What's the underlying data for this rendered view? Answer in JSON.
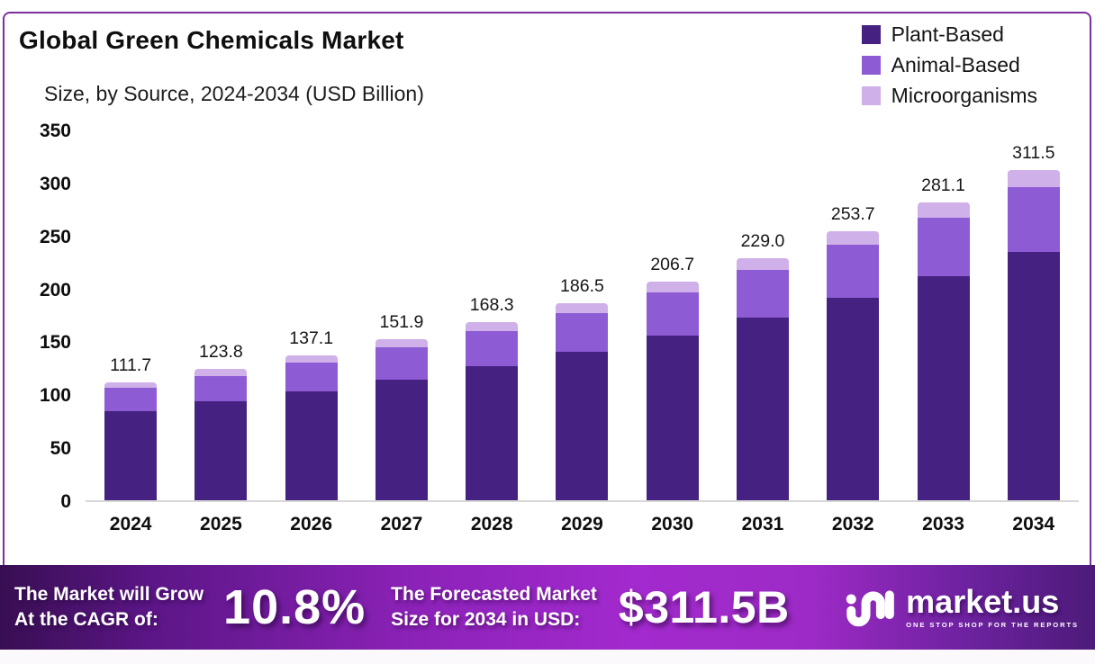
{
  "header": {
    "title": "Global Green Chemicals Market",
    "subtitle": "Size, by Source, 2024-2034 (USD Billion)"
  },
  "legend": [
    {
      "label": "Plant-Based",
      "color": "#452181"
    },
    {
      "label": "Animal-Based",
      "color": "#8d5bd4"
    },
    {
      "label": "Microorganisms",
      "color": "#cfb0e8"
    }
  ],
  "chart_data": {
    "type": "bar",
    "stacked": true,
    "title": "Global Green Chemicals Market Size, by Source, 2024-2034 (USD Billion)",
    "categories": [
      "2024",
      "2025",
      "2026",
      "2027",
      "2028",
      "2029",
      "2030",
      "2031",
      "2032",
      "2033",
      "2034"
    ],
    "series": [
      {
        "name": "Plant-Based",
        "color": "#452181",
        "values": [
          84.0,
          93.1,
          103.1,
          114.2,
          126.6,
          140.2,
          155.4,
          172.2,
          190.8,
          211.4,
          234.2
        ]
      },
      {
        "name": "Animal-Based",
        "color": "#8d5bd4",
        "values": [
          22.1,
          24.5,
          27.1,
          30.1,
          33.3,
          36.9,
          40.9,
          45.3,
          50.2,
          55.7,
          61.7
        ]
      },
      {
        "name": "Microorganisms",
        "color": "#cfb0e8",
        "values": [
          5.6,
          6.2,
          6.9,
          7.6,
          8.4,
          9.4,
          10.4,
          11.5,
          12.7,
          14.0,
          15.6
        ]
      }
    ],
    "totals": [
      111.7,
      123.8,
      137.1,
      151.9,
      168.3,
      186.5,
      206.7,
      229.0,
      253.7,
      281.1,
      311.5
    ],
    "total_labels": [
      "111.7",
      "123.8",
      "137.1",
      "151.9",
      "168.3",
      "186.5",
      "206.7",
      "229.0",
      "253.7",
      "281.1",
      "311.5"
    ],
    "xlabel": "",
    "ylabel": "",
    "ylim": [
      0,
      350
    ],
    "yticks": [
      350,
      300,
      250,
      200,
      150,
      100,
      50,
      0
    ],
    "grid": false,
    "legend_position": "top-right"
  },
  "banner": {
    "cagr_label_line1": "The Market will Grow",
    "cagr_label_line2": "At the CAGR of:",
    "cagr_value": "10.8%",
    "forecast_label_line1": "The Forecasted Market",
    "forecast_label_line2": "Size for 2034 in USD:",
    "forecast_value": "$311.5B",
    "brand_name": "market.us",
    "brand_tagline": "ONE STOP SHOP FOR THE REPORTS"
  },
  "colors": {
    "panel_border": "#7c2f9e",
    "banner_gradient_left": "#380e52",
    "banner_gradient_mid": "#a32ace",
    "banner_gradient_right": "#4c1b79",
    "baseline": "#d7d7d7"
  }
}
